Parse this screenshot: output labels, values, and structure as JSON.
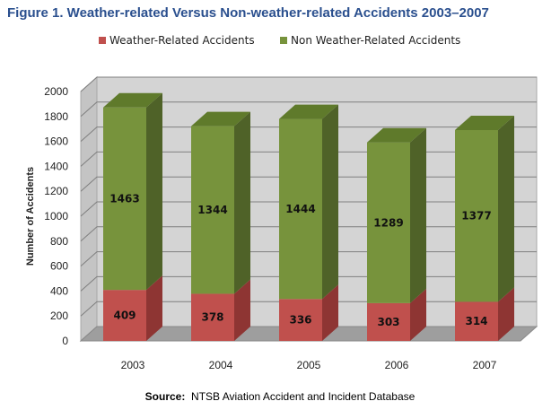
{
  "figure": {
    "title": "Figure 1.  Weather-related Versus Non-weather-related Accidents 2003–2007",
    "source_label": "Source:",
    "source_text": "NTSB Aviation Accident and Incident Database"
  },
  "chart_data": {
    "type": "bar",
    "stacked": true,
    "style": "3d",
    "categories": [
      "2003",
      "2004",
      "2005",
      "2006",
      "2007"
    ],
    "series": [
      {
        "name": "Weather-Related Accidents",
        "values": [
          409,
          378,
          336,
          303,
          314
        ],
        "color": "#c0504d"
      },
      {
        "name": "Non Weather-Related Accidents",
        "values": [
          1463,
          1344,
          1444,
          1289,
          1377
        ],
        "color": "#77933c"
      }
    ],
    "ylabel": "Number of Accidents",
    "xlabel": "",
    "ylim": [
      0,
      2000
    ],
    "yticks": [
      0,
      200,
      400,
      600,
      800,
      1000,
      1200,
      1400,
      1600,
      1800,
      2000
    ],
    "grid": true,
    "legend_position": "top"
  },
  "colors": {
    "weather_front": "#c0504d",
    "weather_side": "#8e3533",
    "weather_top": "#d9716e",
    "nonweather_front": "#77933c",
    "nonweather_side": "#4f6228",
    "nonweather_top": "#5f7a2b",
    "wall": "#d4d4d4",
    "floor": "#9e9e9e"
  }
}
